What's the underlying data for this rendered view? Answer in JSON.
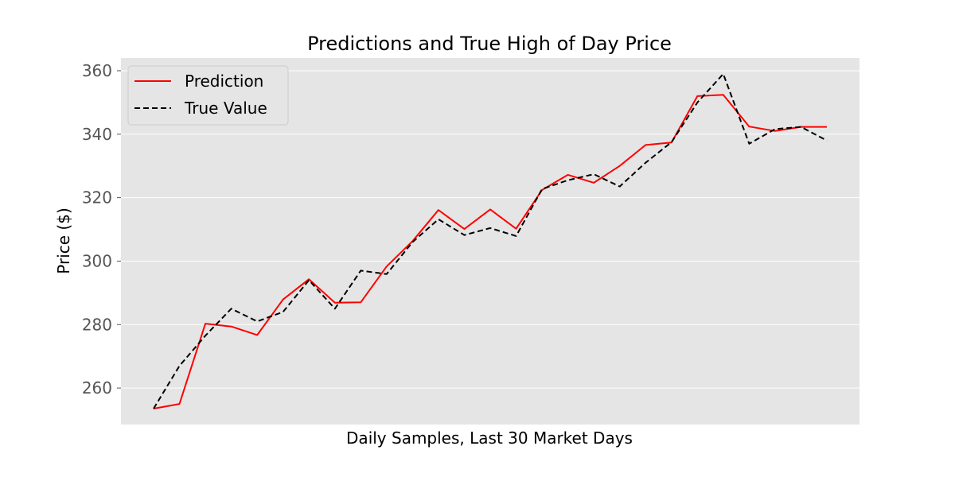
{
  "chart_data": {
    "type": "line",
    "title": "Predictions and True High of Day Price",
    "xlabel": "Daily Samples, Last 30 Market Days",
    "ylabel": "Price ($)",
    "ylim": [
      248.5,
      364
    ],
    "yticks": [
      260,
      280,
      300,
      320,
      340,
      360
    ],
    "grid": true,
    "legend_position": "top-left",
    "colors": {
      "background": "#e5e5e5",
      "grid": "#ffffff",
      "tick": "#555555"
    },
    "series": [
      {
        "name": "Prediction",
        "color": "#ff0000",
        "style": "solid",
        "values": [
          253.5,
          255.0,
          280.3,
          279.4,
          276.7,
          287.9,
          294.3,
          286.9,
          287.0,
          298.3,
          306.3,
          316.1,
          310.1,
          316.3,
          310.2,
          322.4,
          327.2,
          324.7,
          330.0,
          336.6,
          337.4,
          352.0,
          352.4,
          342.4,
          341.0,
          342.3,
          342.3
        ]
      },
      {
        "name": "True Value",
        "color": "#000000",
        "style": "dashed",
        "values": [
          253.5,
          267.0,
          276.5,
          285.0,
          281.0,
          284.0,
          294.0,
          285.0,
          297.0,
          295.9,
          306.0,
          313.2,
          308.2,
          310.4,
          307.9,
          322.7,
          325.5,
          327.4,
          323.5,
          331.0,
          337.5,
          350.0,
          359.0,
          337.0,
          341.6,
          342.3,
          338.0
        ]
      }
    ]
  }
}
